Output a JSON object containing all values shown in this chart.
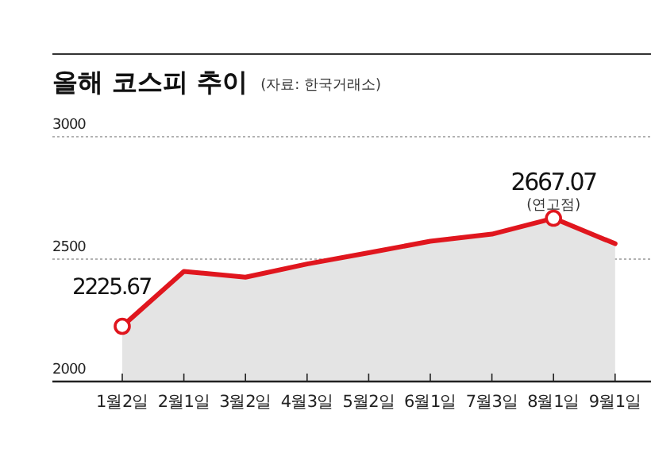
{
  "chart_data": {
    "type": "area",
    "title": "올해 코스피 추이",
    "subtitle": "(자료: 한국거래소)",
    "categories": [
      "1월2일",
      "2월1일",
      "3월2일",
      "4월3일",
      "5월2일",
      "6월1일",
      "7월3일",
      "8월1일",
      "9월1일"
    ],
    "series": [
      {
        "color": "#e0161e",
        "values": [
          2225.67,
          2450,
          2426,
          2480,
          2526,
          2573,
          2602,
          2667.07,
          2563
        ]
      }
    ],
    "ylim": [
      2000,
      3000
    ],
    "yticks": [
      2000,
      2500,
      3000
    ],
    "grid": "y",
    "annotations": [
      {
        "text": "2225.67",
        "x": "1월2일",
        "y": 2225.67
      },
      {
        "text": "2667.07",
        "x": "8월1일",
        "y": 2667.07
      },
      {
        "text": "(연고점)",
        "x": "8월1일",
        "y": 2667.07
      }
    ]
  }
}
